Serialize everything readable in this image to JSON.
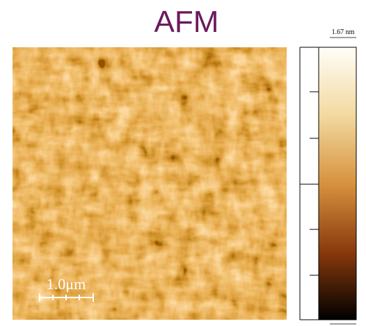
{
  "title": "AFM",
  "scale_bar": {
    "label": "1.0μm"
  },
  "colorbar": {
    "max_label": "1.67 nm"
  }
}
